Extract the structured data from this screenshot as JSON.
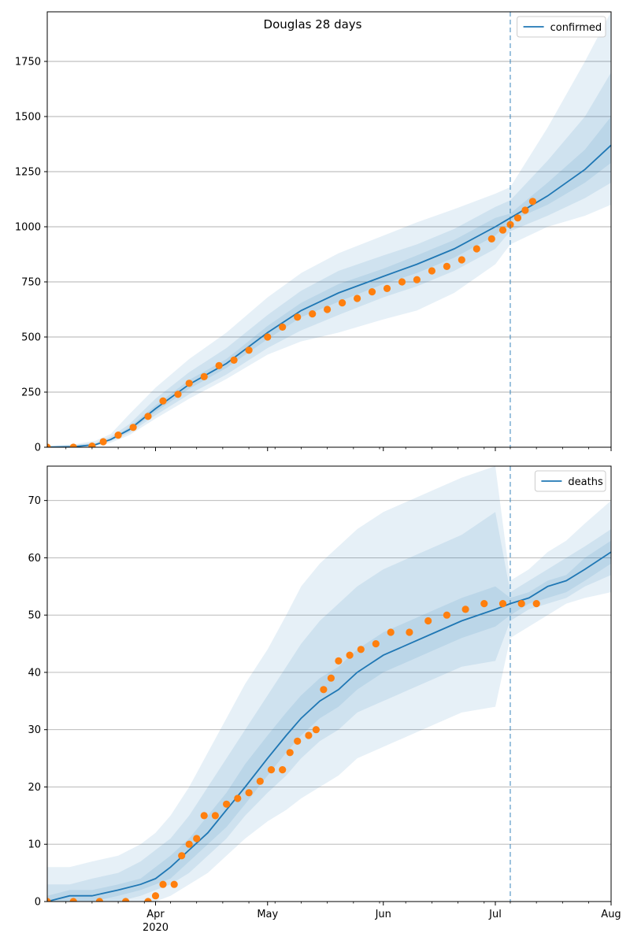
{
  "figure": {
    "suptitle": "Douglas 28 days"
  },
  "colors": {
    "model": "#1f77b4",
    "observed": "#ff7f0e",
    "band": "#1f77b4",
    "grid": "#b0b0b0",
    "axis": "#000000"
  },
  "chart_data": [
    {
      "type": "line",
      "title": "Douglas 28 days",
      "ylim": [
        0,
        1975
      ],
      "yticks": [
        0,
        250,
        500,
        750,
        1000,
        1250,
        1500,
        1750
      ],
      "xlim": [
        "2020-03-03",
        "2020-08-01"
      ],
      "grid": "horizontal",
      "legend": "top-right",
      "forecast_start": "2020-07-05",
      "x_major_ticks": [
        {
          "date": "2020-04-01",
          "label": "Apr",
          "sublabel": "2020"
        },
        {
          "date": "2020-05-01",
          "label": "May",
          "sublabel": ""
        },
        {
          "date": "2020-06-01",
          "label": "Jun",
          "sublabel": ""
        },
        {
          "date": "2020-07-01",
          "label": "Jul",
          "sublabel": ""
        },
        {
          "date": "2020-08-01",
          "label": "Aug",
          "sublabel": ""
        }
      ],
      "show_x_labels": false,
      "series": [
        {
          "name": "confirmed",
          "kind": "median-line",
          "x": [
            "2020-03-03",
            "2020-03-10",
            "2020-03-16",
            "2020-03-20",
            "2020-03-25",
            "2020-04-01",
            "2020-04-10",
            "2020-04-20",
            "2020-05-01",
            "2020-05-10",
            "2020-05-20",
            "2020-06-01",
            "2020-06-10",
            "2020-06-20",
            "2020-07-01",
            "2020-07-05",
            "2020-07-15",
            "2020-07-25",
            "2020-08-01"
          ],
          "values": [
            0,
            2,
            12,
            35,
            80,
            175,
            285,
            380,
            520,
            620,
            700,
            775,
            830,
            900,
            1000,
            1040,
            1140,
            1260,
            1370
          ]
        },
        {
          "name": "",
          "kind": "observed-points",
          "x": [
            "2020-03-03",
            "2020-03-10",
            "2020-03-15",
            "2020-03-18",
            "2020-03-22",
            "2020-03-26",
            "2020-03-30",
            "2020-04-03",
            "2020-04-07",
            "2020-04-10",
            "2020-04-14",
            "2020-04-18",
            "2020-04-22",
            "2020-04-26",
            "2020-05-01",
            "2020-05-05",
            "2020-05-09",
            "2020-05-13",
            "2020-05-17",
            "2020-05-21",
            "2020-05-25",
            "2020-05-29",
            "2020-06-02",
            "2020-06-06",
            "2020-06-10",
            "2020-06-14",
            "2020-06-18",
            "2020-06-22",
            "2020-06-26",
            "2020-06-30",
            "2020-07-03",
            "2020-07-05",
            "2020-07-07",
            "2020-07-09",
            "2020-07-11"
          ],
          "values": [
            0,
            0,
            5,
            25,
            55,
            90,
            140,
            210,
            240,
            290,
            320,
            370,
            395,
            440,
            500,
            545,
            590,
            605,
            625,
            655,
            675,
            705,
            720,
            750,
            760,
            800,
            820,
            850,
            900,
            945,
            985,
            1010,
            1040,
            1075,
            1115
          ]
        }
      ],
      "bands": [
        {
          "lower": [
            0,
            0,
            5,
            20,
            55,
            130,
            220,
            310,
            420,
            480,
            520,
            580,
            620,
            700,
            830,
            920,
            1000,
            1050,
            1100
          ],
          "upper": [
            8,
            12,
            30,
            60,
            150,
            270,
            400,
            520,
            680,
            790,
            880,
            960,
            1020,
            1080,
            1150,
            1180,
            1450,
            1750,
            1975
          ]
        },
        {
          "lower": [
            0,
            0,
            8,
            28,
            65,
            145,
            240,
            330,
            450,
            530,
            600,
            680,
            730,
            800,
            900,
            980,
            1050,
            1130,
            1200
          ],
          "upper": [
            6,
            10,
            20,
            48,
            105,
            220,
            340,
            450,
            600,
            710,
            800,
            870,
            920,
            990,
            1090,
            1120,
            1300,
            1500,
            1700
          ]
        },
        {
          "lower": [
            0,
            0,
            10,
            32,
            72,
            160,
            265,
            360,
            490,
            590,
            660,
            740,
            790,
            860,
            960,
            1025,
            1100,
            1200,
            1290
          ],
          "upper": [
            3,
            6,
            15,
            40,
            90,
            190,
            305,
            400,
            550,
            655,
            740,
            810,
            870,
            940,
            1040,
            1060,
            1200,
            1350,
            1500
          ]
        }
      ]
    },
    {
      "type": "line",
      "title": "",
      "ylim": [
        0,
        76
      ],
      "yticks": [
        0,
        10,
        20,
        30,
        40,
        50,
        60,
        70
      ],
      "xlim": [
        "2020-03-03",
        "2020-08-01"
      ],
      "grid": "horizontal",
      "legend": "top-right",
      "forecast_start": "2020-07-05",
      "x_major_ticks": [
        {
          "date": "2020-04-01",
          "label": "Apr",
          "sublabel": "2020"
        },
        {
          "date": "2020-05-01",
          "label": "May",
          "sublabel": ""
        },
        {
          "date": "2020-06-01",
          "label": "Jun",
          "sublabel": ""
        },
        {
          "date": "2020-07-01",
          "label": "Jul",
          "sublabel": ""
        },
        {
          "date": "2020-08-01",
          "label": "Aug",
          "sublabel": ""
        }
      ],
      "show_x_labels": true,
      "series": [
        {
          "name": "deaths",
          "kind": "median-line",
          "x": [
            "2020-03-03",
            "2020-03-09",
            "2020-03-15",
            "2020-03-22",
            "2020-03-28",
            "2020-04-01",
            "2020-04-05",
            "2020-04-10",
            "2020-04-15",
            "2020-04-20",
            "2020-04-25",
            "2020-05-01",
            "2020-05-06",
            "2020-05-10",
            "2020-05-15",
            "2020-05-20",
            "2020-05-25",
            "2020-06-01",
            "2020-06-08",
            "2020-06-15",
            "2020-06-22",
            "2020-07-01",
            "2020-07-05",
            "2020-07-10",
            "2020-07-15",
            "2020-07-20",
            "2020-07-25",
            "2020-08-01"
          ],
          "values": [
            0,
            1,
            1,
            2,
            3,
            4,
            6,
            9,
            12,
            16,
            20,
            25,
            29,
            32,
            35,
            37,
            40,
            43,
            45,
            47,
            49,
            51,
            52,
            53,
            55,
            56,
            58,
            61
          ]
        },
        {
          "name": "",
          "kind": "observed-points",
          "x": [
            "2020-03-03",
            "2020-03-10",
            "2020-03-17",
            "2020-03-24",
            "2020-03-30",
            "2020-04-01",
            "2020-04-03",
            "2020-04-06",
            "2020-04-08",
            "2020-04-10",
            "2020-04-12",
            "2020-04-14",
            "2020-04-17",
            "2020-04-20",
            "2020-04-23",
            "2020-04-26",
            "2020-04-29",
            "2020-05-02",
            "2020-05-05",
            "2020-05-07",
            "2020-05-09",
            "2020-05-12",
            "2020-05-14",
            "2020-05-16",
            "2020-05-18",
            "2020-05-20",
            "2020-05-23",
            "2020-05-26",
            "2020-05-30",
            "2020-06-03",
            "2020-06-08",
            "2020-06-13",
            "2020-06-18",
            "2020-06-23",
            "2020-06-28",
            "2020-07-03",
            "2020-07-08",
            "2020-07-12"
          ],
          "values": [
            0,
            0,
            0,
            0,
            0,
            1,
            3,
            3,
            8,
            10,
            11,
            15,
            15,
            17,
            18,
            19,
            21,
            23,
            23,
            26,
            28,
            29,
            30,
            37,
            39,
            42,
            43,
            44,
            45,
            47,
            47,
            49,
            50,
            51,
            52,
            52,
            52,
            52
          ]
        }
      ],
      "bands": [
        {
          "lower": [
            0,
            0,
            0,
            0,
            0,
            0,
            1,
            3,
            5,
            8,
            11,
            14,
            16,
            18,
            20,
            22,
            25,
            27,
            29,
            31,
            33,
            34,
            46,
            48,
            50,
            52,
            53,
            54
          ],
          "upper": [
            6,
            6,
            7,
            8,
            10,
            12,
            15,
            20,
            26,
            32,
            38,
            44,
            50,
            55,
            59,
            62,
            65,
            68,
            70,
            72,
            74,
            76,
            56,
            58,
            61,
            63,
            66,
            70
          ]
        },
        {
          "lower": [
            0,
            0,
            0,
            0,
            1,
            2,
            3,
            5,
            8,
            11,
            15,
            19,
            22,
            25,
            28,
            30,
            33,
            35,
            37,
            39,
            41,
            42,
            49,
            51,
            52,
            53,
            55,
            57
          ],
          "upper": [
            3,
            3,
            4,
            5,
            7,
            9,
            11,
            15,
            20,
            25,
            30,
            36,
            41,
            45,
            49,
            52,
            55,
            58,
            60,
            62,
            64,
            68,
            54,
            56,
            58,
            60,
            62,
            65
          ]
        },
        {
          "lower": [
            0,
            0,
            0,
            1,
            2,
            3,
            4,
            7,
            10,
            13,
            17,
            22,
            26,
            29,
            32,
            34,
            37,
            40,
            42,
            44,
            46,
            48,
            50,
            52,
            53,
            54,
            56,
            59
          ],
          "upper": [
            1,
            2,
            2,
            3,
            4,
            6,
            8,
            11,
            15,
            19,
            24,
            29,
            33,
            36,
            39,
            41,
            44,
            47,
            49,
            51,
            53,
            55,
            53,
            54,
            56,
            57,
            60,
            63
          ]
        }
      ]
    }
  ]
}
